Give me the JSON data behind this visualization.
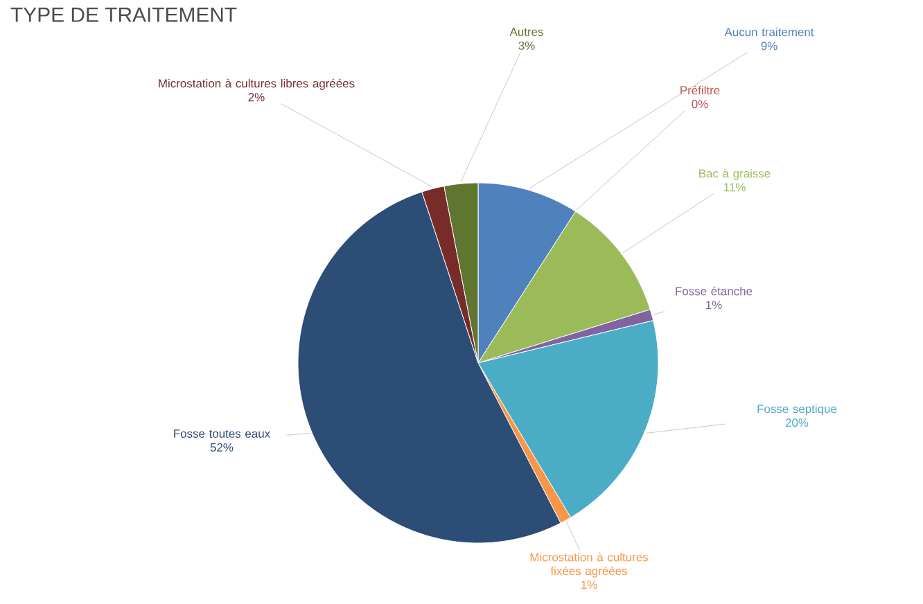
{
  "chart_data": {
    "type": "pie",
    "title": "TYPE DE TRAITEMENT",
    "categories": [
      "Aucun traitement",
      "Préfiltre",
      "Bac à graisse",
      "Fosse étanche",
      "Fosse septique",
      "Microstation à cultures fixées agréées",
      "Fosse toutes eaux",
      "Microstation à cultures libres agréées",
      "Autres"
    ],
    "values": [
      9,
      0,
      11,
      1,
      20,
      1,
      52,
      2,
      3
    ],
    "value_labels": [
      "9%",
      "0%",
      "11%",
      "1%",
      "20%",
      "1%",
      "52%",
      "2%",
      "3%"
    ],
    "colors": [
      "#4f81bd",
      "#c0504d",
      "#9bbb59",
      "#8064a2",
      "#4bacc6",
      "#f79646",
      "#2c4d75",
      "#772c2a",
      "#5f7530"
    ]
  }
}
